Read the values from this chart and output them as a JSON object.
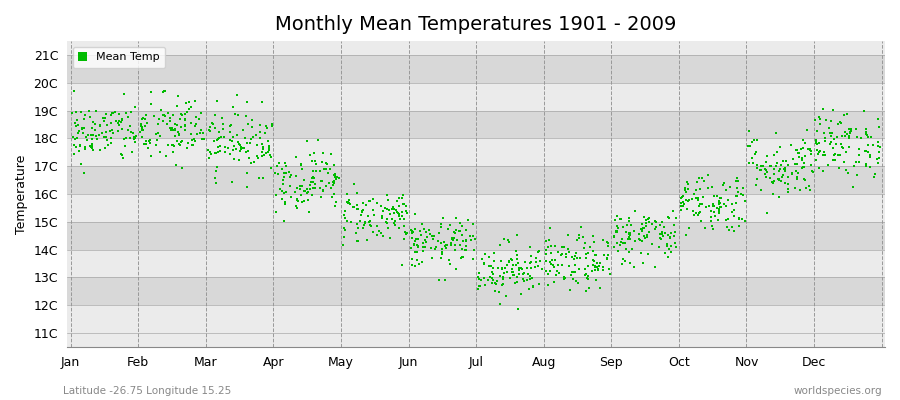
{
  "title": "Monthly Mean Temperatures 1901 - 2009",
  "ylabel": "Temperature",
  "xlabel_labels": [
    "Jan",
    "Feb",
    "Mar",
    "Apr",
    "May",
    "Jun",
    "Jul",
    "Aug",
    "Sep",
    "Oct",
    "Nov",
    "Dec"
  ],
  "ytick_labels": [
    "11C",
    "12C",
    "13C",
    "14C",
    "15C",
    "16C",
    "17C",
    "18C",
    "19C",
    "20C",
    "21C"
  ],
  "ytick_values": [
    11,
    12,
    13,
    14,
    15,
    16,
    17,
    18,
    19,
    20,
    21
  ],
  "ylim": [
    10.5,
    21.5
  ],
  "dot_color": "#00bb00",
  "dot_size": 3,
  "background_color": "#ffffff",
  "plot_bg_light": "#ebebeb",
  "plot_bg_dark": "#d8d8d8",
  "grid_color": "#999999",
  "title_fontsize": 14,
  "label_fontsize": 9,
  "legend_label": "Mean Temp",
  "subtitle_left": "Latitude -26.75 Longitude 15.25",
  "subtitle_right": "worldspecies.org",
  "monthly_means": [
    18.2,
    18.3,
    17.9,
    16.5,
    15.2,
    14.2,
    13.3,
    13.5,
    14.5,
    15.7,
    17.0,
    17.8
  ],
  "monthly_stds": [
    0.55,
    0.65,
    0.6,
    0.55,
    0.5,
    0.45,
    0.5,
    0.5,
    0.5,
    0.55,
    0.6,
    0.6
  ],
  "n_years": 109,
  "seed": 42
}
